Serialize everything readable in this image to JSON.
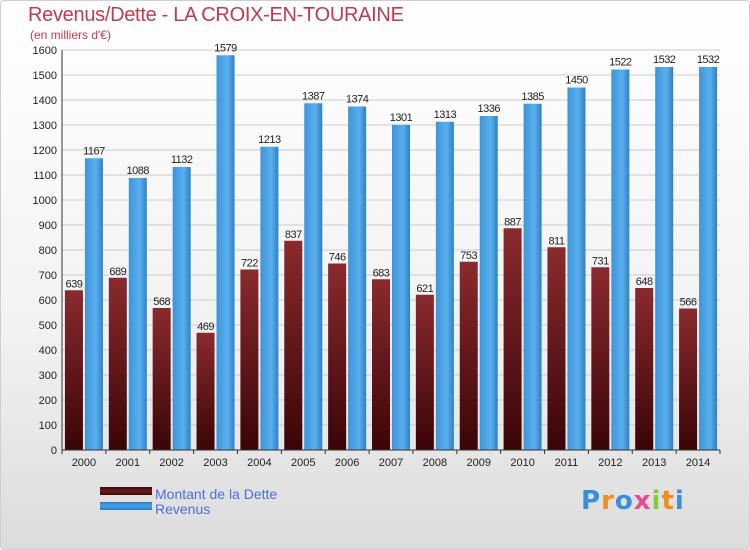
{
  "title": "Revenus/Dette - LA CROIX-EN-TOURAINE",
  "subtitle": "(en milliers d'€)",
  "logo": "Proxiti",
  "colors": {
    "dette": "#6e1a1e",
    "revenus": "#4aa3e6",
    "title": "#c03a50",
    "legend_text": "#4a6ee0"
  },
  "legend": [
    {
      "label": "Montant de la Dette",
      "color": "#6e1a1e"
    },
    {
      "label": "Revenus",
      "color": "#4aa3e6"
    }
  ],
  "chart_data": {
    "type": "bar",
    "title": "Revenus/Dette - LA CROIX-EN-TOURAINE",
    "subtitle": "(en milliers d'€)",
    "categories": [
      "2000",
      "2001",
      "2002",
      "2003",
      "2004",
      "2005",
      "2006",
      "2007",
      "2008",
      "2009",
      "2010",
      "2011",
      "2012",
      "2013",
      "2014"
    ],
    "series": [
      {
        "name": "Montant de la Dette",
        "values": [
          639,
          689,
          568,
          469,
          722,
          837,
          746,
          683,
          621,
          753,
          887,
          811,
          731,
          648,
          566
        ]
      },
      {
        "name": "Revenus",
        "values": [
          1167,
          1088,
          1132,
          1579,
          1213,
          1387,
          1374,
          1301,
          1313,
          1336,
          1385,
          1450,
          1522,
          1532,
          1532
        ]
      }
    ],
    "ylim": [
      0,
      1600
    ],
    "yticks": [
      0,
      100,
      200,
      300,
      400,
      500,
      600,
      700,
      800,
      900,
      1000,
      1100,
      1200,
      1300,
      1400,
      1500,
      1600
    ],
    "grid": true,
    "legend_position": "bottom-left"
  }
}
